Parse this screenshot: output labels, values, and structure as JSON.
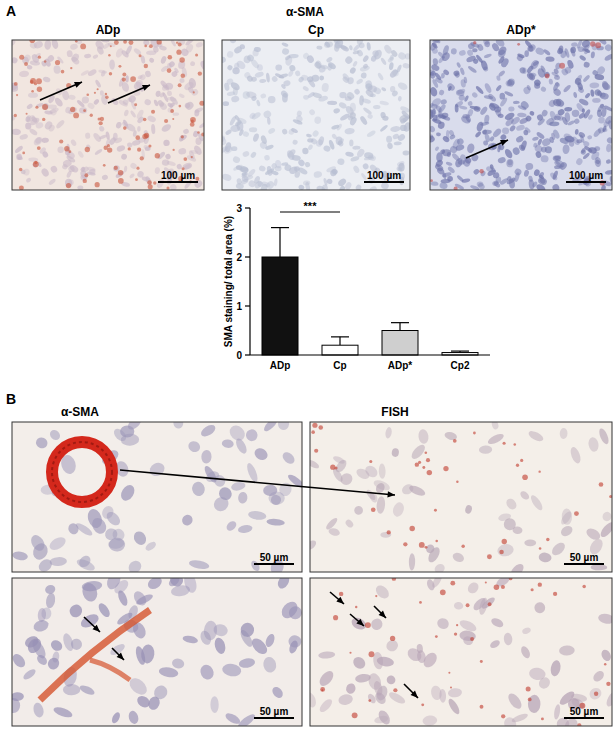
{
  "panels": {
    "a": {
      "label": "A",
      "title": "α-SMA",
      "images": [
        {
          "label": "ADp",
          "scale_bar": "100 µm"
        },
        {
          "label": "Cp",
          "scale_bar": "100 µm"
        },
        {
          "label": "ADp*",
          "scale_bar": "100 µm"
        }
      ]
    },
    "b": {
      "label": "B",
      "columns": [
        "α-SMA",
        "FISH"
      ],
      "images": [
        {
          "scale_bar": "50 µm"
        },
        {
          "scale_bar": "50 µm"
        },
        {
          "scale_bar": "50 µm"
        },
        {
          "scale_bar": "50 µm"
        }
      ]
    }
  },
  "chart_data": {
    "type": "bar",
    "categories": [
      "ADp",
      "Cp",
      "ADp*",
      "Cp2"
    ],
    "values": [
      2,
      0.2,
      0.5,
      0.05
    ],
    "errors": [
      0.6,
      0.17,
      0.16,
      0.03
    ],
    "colors": [
      "#111111",
      "#ffffff",
      "#cfcfcf",
      "#ffffff"
    ],
    "ylim": [
      0,
      3
    ],
    "yticks": [
      0,
      1,
      2,
      3
    ],
    "y_label": "SMA staining/ total area (%)",
    "annotations": [
      {
        "text": "***",
        "between": [
          "ADp",
          "Cp"
        ]
      }
    ]
  }
}
